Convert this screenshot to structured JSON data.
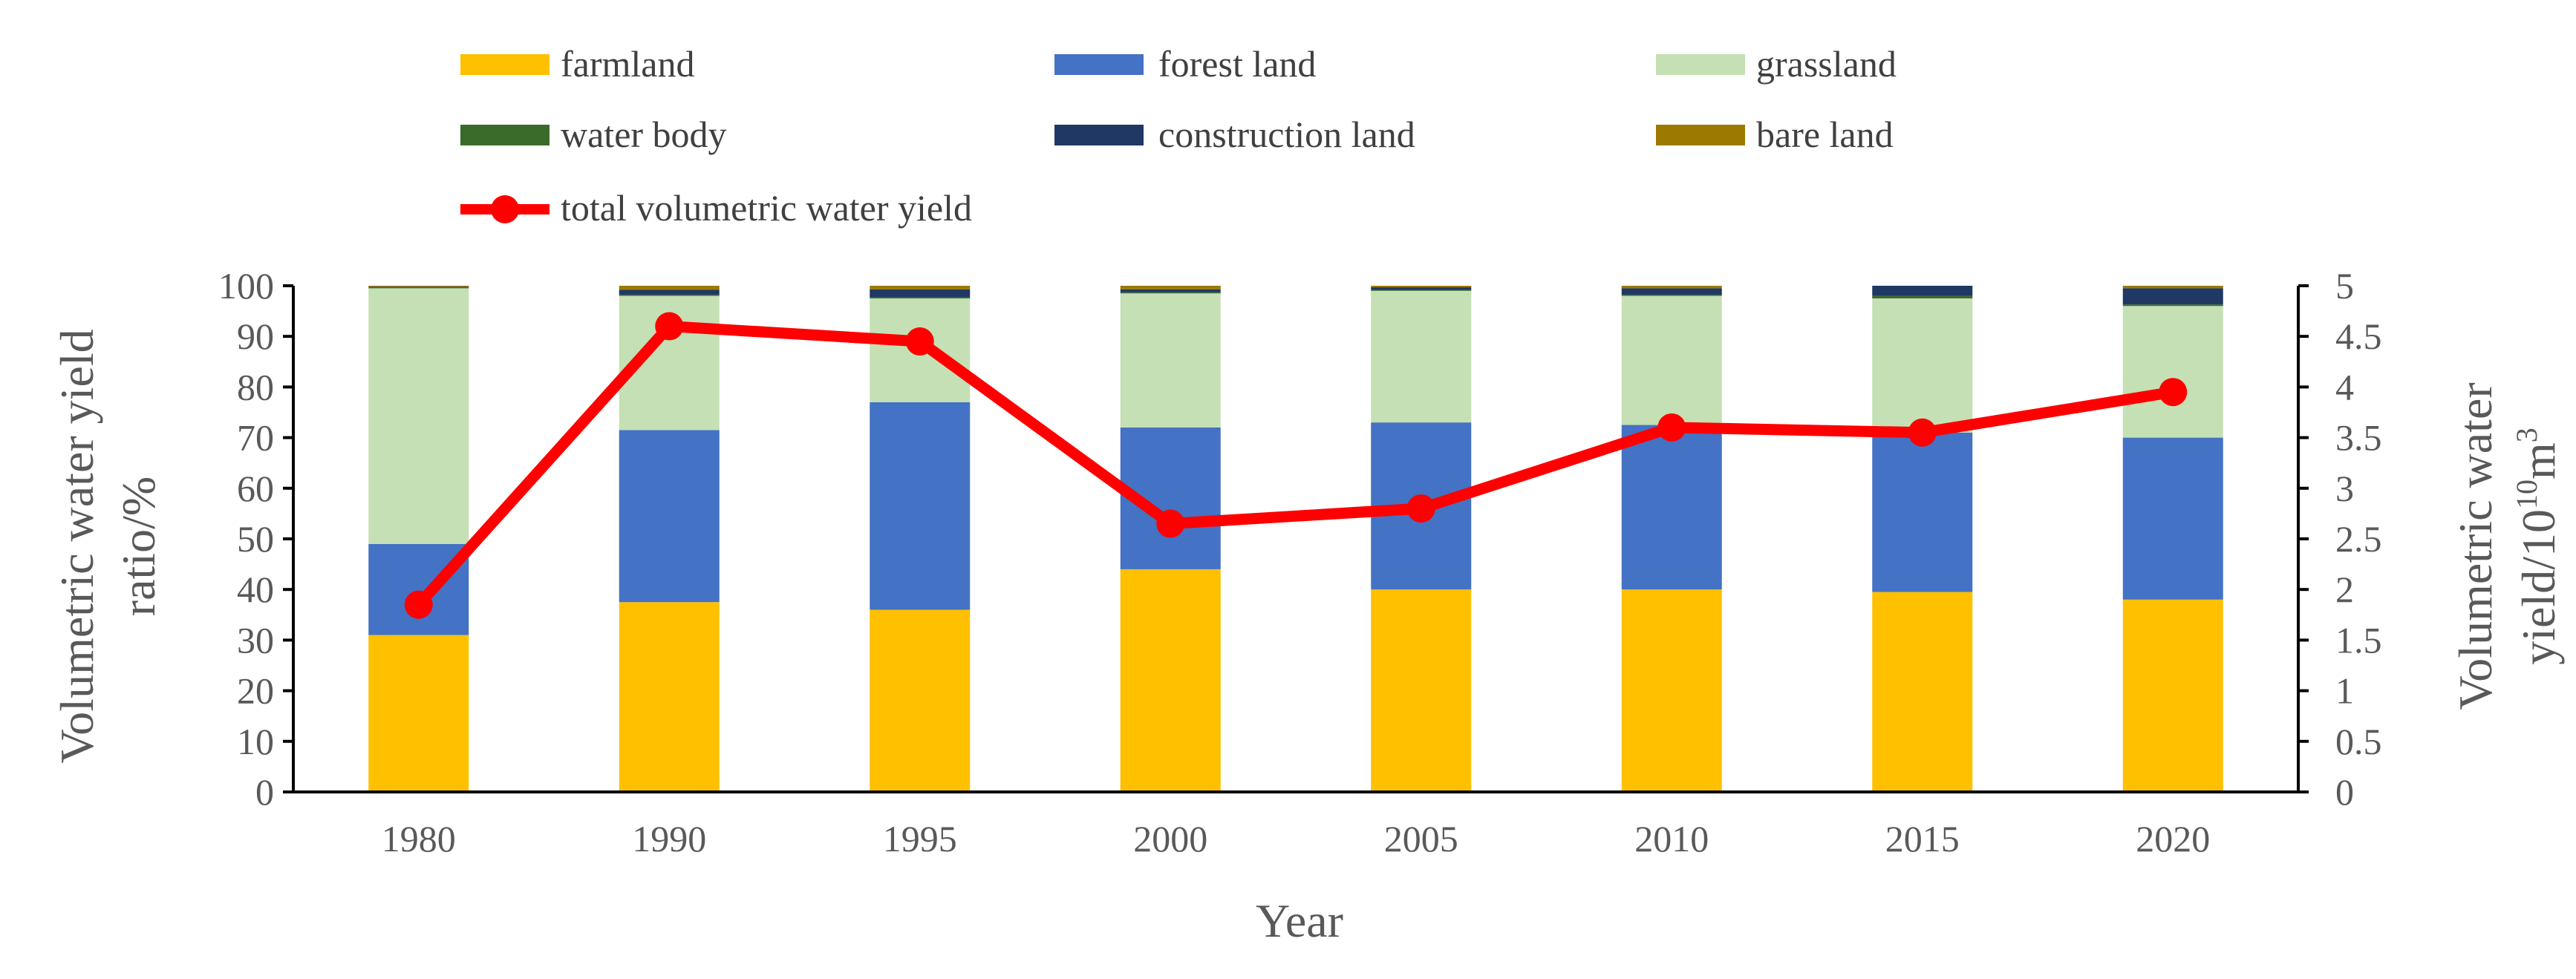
{
  "chart_data": {
    "type": "bar",
    "stacked": true,
    "categories": [
      "1980",
      "1990",
      "1995",
      "2000",
      "2005",
      "2010",
      "2015",
      "2020"
    ],
    "series": [
      {
        "name": "farmland",
        "color": "#FFC000",
        "axis": "left",
        "values": [
          31,
          37.5,
          36,
          44,
          40,
          40,
          39.5,
          38
        ]
      },
      {
        "name": "forest land",
        "color": "#4472C4",
        "axis": "left",
        "values": [
          18,
          34,
          41,
          28,
          33,
          32.5,
          31.5,
          32
        ]
      },
      {
        "name": "grassland",
        "color": "#C5E0B4",
        "axis": "left",
        "values": [
          50.5,
          26.5,
          20.5,
          26.5,
          26,
          25.5,
          26.5,
          26
        ]
      },
      {
        "name": "water body",
        "color": "#3A6B2A",
        "axis": "left",
        "values": [
          0.2,
          0.2,
          0.2,
          0.2,
          0.2,
          0.2,
          0.5,
          0.3
        ]
      },
      {
        "name": "construction land",
        "color": "#203864",
        "axis": "left",
        "values": [
          0.1,
          1.0,
          1.6,
          0.6,
          0.5,
          1.3,
          2.0,
          3.2
        ]
      },
      {
        "name": "bare land",
        "color": "#9C7A00",
        "axis": "left",
        "values": [
          0.2,
          0.8,
          0.7,
          0.7,
          0.3,
          0.5,
          0.0,
          0.5
        ]
      }
    ],
    "line_series": {
      "name": "total volumetric water yield",
      "color": "#FF0000",
      "axis": "right",
      "values": [
        1.85,
        4.6,
        4.45,
        2.65,
        2.8,
        3.6,
        3.55,
        3.95
      ]
    },
    "y_left": {
      "label_line1": "Volumetric water yield",
      "label_line2": "ratio/%",
      "lim": [
        0,
        100
      ],
      "ticks": [
        "0",
        "10",
        "20",
        "30",
        "40",
        "50",
        "60",
        "70",
        "80",
        "90",
        "100"
      ]
    },
    "y_right": {
      "label_line1": "Volumetric water",
      "label_line2_prefix": "yield/10",
      "label_line2_exp": "10",
      "label_line2_unit": "m",
      "label_line2_unit_exp": "3",
      "lim": [
        0,
        5
      ],
      "ticks": [
        "0",
        "0.5",
        "1",
        "1.5",
        "2",
        "2.5",
        "3",
        "3.5",
        "4",
        "4.5",
        "5"
      ]
    },
    "xlabel": "Year",
    "legend_position": "top"
  }
}
